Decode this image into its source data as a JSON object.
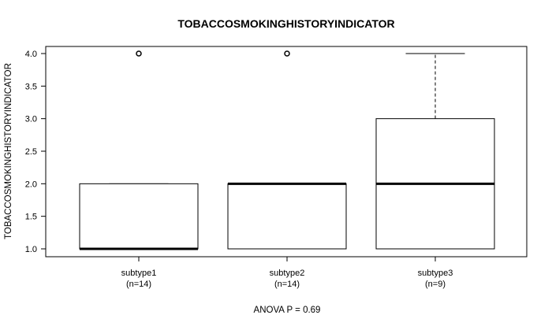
{
  "chart_data": {
    "type": "boxplot",
    "title": "TOBACCOSMOKINGHISTORYINDICATOR",
    "ylabel": "TOBACCOSMOKINGHISTORYINDICATOR",
    "xlabel": "ANOVA P = 0.69",
    "ylim": [
      1.0,
      4.0
    ],
    "yticks": [
      "1.0",
      "1.5",
      "2.0",
      "2.5",
      "3.0",
      "3.5",
      "4.0"
    ],
    "groups": [
      {
        "name": "subtype1",
        "n_label": "(n=14)",
        "lower_whisker": 1.0,
        "q1": 1.0,
        "median": 1.0,
        "q3": 2.0,
        "upper_whisker": 2.0,
        "outliers": [
          4.0
        ]
      },
      {
        "name": "subtype2",
        "n_label": "(n=14)",
        "lower_whisker": 1.0,
        "q1": 1.0,
        "median": 2.0,
        "q3": 2.0,
        "upper_whisker": 2.0,
        "outliers": [
          4.0
        ]
      },
      {
        "name": "subtype3",
        "n_label": "(n=9)",
        "lower_whisker": 1.0,
        "q1": 1.0,
        "median": 2.0,
        "q3": 3.0,
        "upper_whisker": 4.0,
        "outliers": []
      }
    ]
  }
}
